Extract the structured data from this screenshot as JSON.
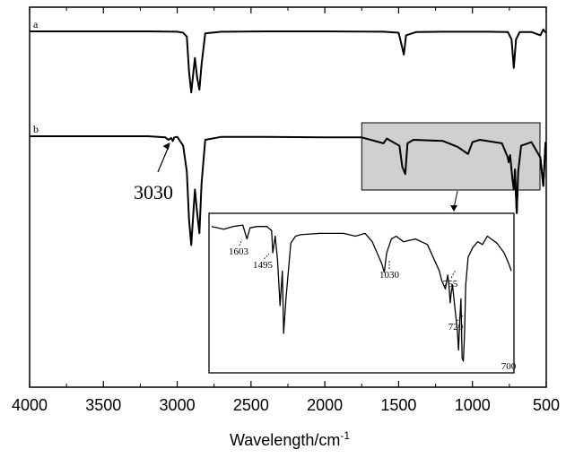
{
  "chart_data": {
    "type": "line",
    "xlabel": "Wavelength/cm",
    "xlabel_sup": "-1",
    "ylabel": "",
    "xlim": [
      4000,
      500
    ],
    "x_ticks": [
      4000,
      3500,
      3000,
      2500,
      2000,
      1500,
      1000,
      500
    ],
    "grid": false,
    "series": [
      {
        "name": "a",
        "x": [
          4000,
          3600,
          3200,
          3000,
          2960,
          2935,
          2920,
          2905,
          2880,
          2865,
          2850,
          2835,
          2810,
          2700,
          2400,
          2000,
          1600,
          1500,
          1475,
          1465,
          1450,
          1380,
          1200,
          900,
          760,
          735,
          720,
          705,
          680,
          600,
          540,
          520,
          505
        ],
        "y": [
          0,
          0,
          0,
          0.5,
          2,
          8,
          60,
          92,
          40,
          70,
          88,
          50,
          3,
          0.5,
          0,
          0,
          0.5,
          2,
          25,
          35,
          6,
          1,
          0.5,
          0.5,
          1,
          12,
          55,
          12,
          1,
          1,
          6,
          -3,
          2
        ]
      },
      {
        "name": "b",
        "x": [
          4000,
          3600,
          3200,
          3080,
          3060,
          3040,
          3030,
          3020,
          3000,
          2960,
          2935,
          2920,
          2905,
          2880,
          2865,
          2850,
          2835,
          2810,
          2700,
          2400,
          2000,
          1750,
          1603,
          1580,
          1495,
          1475,
          1455,
          1440,
          1400,
          1200,
          1100,
          1030,
          1000,
          950,
          800,
          760,
          755,
          745,
          730,
          720,
          712,
          700,
          690,
          670,
          600,
          540,
          520,
          505
        ],
        "y": [
          0,
          0,
          0,
          1,
          3,
          1.5,
          4,
          1,
          0.5,
          8,
          30,
          70,
          92,
          45,
          65,
          82,
          40,
          3,
          0.5,
          0.5,
          1,
          1,
          6,
          2,
          8,
          26,
          32,
          6,
          3,
          4,
          9,
          15,
          5,
          3,
          6,
          18,
          22,
          16,
          35,
          45,
          28,
          65,
          30,
          8,
          5,
          18,
          42,
          5
        ]
      }
    ],
    "annotations": [
      "3030"
    ],
    "inset": {
      "xlim": [
        1750,
        500
      ],
      "x": [
        1750,
        1700,
        1660,
        1620,
        1603,
        1590,
        1560,
        1520,
        1500,
        1495,
        1485,
        1475,
        1465,
        1455,
        1450,
        1440,
        1420,
        1400,
        1380,
        1300,
        1200,
        1150,
        1110,
        1080,
        1060,
        1040,
        1030,
        1020,
        1000,
        980,
        950,
        900,
        850,
        800,
        790,
        775,
        765,
        760,
        755,
        750,
        745,
        735,
        725,
        720,
        715,
        710,
        705,
        700,
        695,
        690,
        680,
        660,
        640,
        620,
        600,
        560,
        530,
        510,
        500
      ],
      "y": [
        3,
        5,
        3,
        2,
        12,
        4,
        3,
        3,
        6,
        22,
        10,
        28,
        60,
        35,
        80,
        55,
        15,
        10,
        9,
        8,
        8,
        10,
        8,
        14,
        22,
        30,
        36,
        22,
        12,
        10,
        14,
        12,
        16,
        35,
        42,
        48,
        38,
        45,
        58,
        50,
        45,
        62,
        78,
        92,
        70,
        55,
        98,
        100,
        80,
        45,
        25,
        18,
        14,
        16,
        10,
        15,
        22,
        30,
        35
      ],
      "labels": [
        "1603",
        "1495",
        "1030",
        "755",
        "720",
        "700"
      ]
    }
  }
}
